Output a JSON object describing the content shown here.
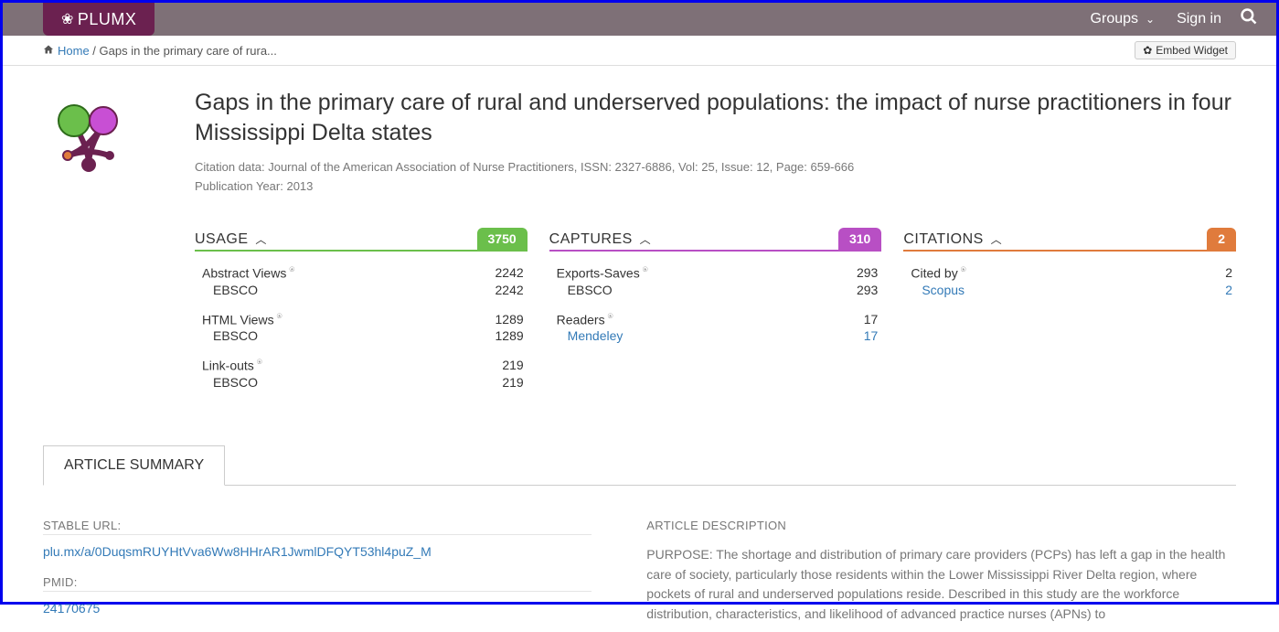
{
  "topbar": {
    "logo_text": "PLUMX",
    "groups_label": "Groups",
    "signin_label": "Sign in"
  },
  "breadcrumb": {
    "home_label": "Home",
    "current": "Gaps in the primary care of rura..."
  },
  "embed_label": "Embed Widget",
  "article": {
    "title": "Gaps in the primary care of rural and underserved populations: the impact of nurse practitioners in four Mississippi Delta states",
    "citation": "Citation data: Journal of the American Association of Nurse Practitioners, ISSN: 2327-6886, Vol: 25, Issue: 12, Page: 659-666",
    "pubyear": "Publication Year: 2013"
  },
  "metrics": {
    "usage": {
      "title": "USAGE",
      "total": "3750",
      "groups": [
        {
          "label": "Abstract Views",
          "value": "2242",
          "subs": [
            {
              "label": "EBSCO",
              "value": "2242",
              "link": false
            }
          ]
        },
        {
          "label": "HTML Views",
          "value": "1289",
          "subs": [
            {
              "label": "EBSCO",
              "value": "1289",
              "link": false
            }
          ]
        },
        {
          "label": "Link-outs",
          "value": "219",
          "subs": [
            {
              "label": "EBSCO",
              "value": "219",
              "link": false
            }
          ]
        }
      ]
    },
    "captures": {
      "title": "CAPTURES",
      "total": "310",
      "groups": [
        {
          "label": "Exports-Saves",
          "value": "293",
          "subs": [
            {
              "label": "EBSCO",
              "value": "293",
              "link": false
            }
          ]
        },
        {
          "label": "Readers",
          "value": "17",
          "subs": [
            {
              "label": "Mendeley",
              "value": "17",
              "link": true
            }
          ]
        }
      ]
    },
    "citations": {
      "title": "CITATIONS",
      "total": "2",
      "groups": [
        {
          "label": "Cited by",
          "value": "2",
          "subs": [
            {
              "label": "Scopus",
              "value": "2",
              "link": true
            }
          ]
        }
      ]
    }
  },
  "tab_label": "ARTICLE SUMMARY",
  "summary": {
    "stable_url_label": "STABLE URL:",
    "stable_url": "plu.mx/a/0DuqsmRUYHtVva6Ww8HHrAR1JwmlDFQYT53hl4puZ_M",
    "pmid_label": "PMID:",
    "pmid": "24170675",
    "desc_label": "ARTICLE DESCRIPTION",
    "desc": "PURPOSE: The shortage and distribution of primary care providers (PCPs) has left a gap in the health care of society, particularly those residents within the Lower Mississippi River Delta region, where pockets of rural and underserved populations reside. Described in this study are the workforce distribution, characteristics, and likelihood of advanced practice nurses (APNs) to"
  }
}
